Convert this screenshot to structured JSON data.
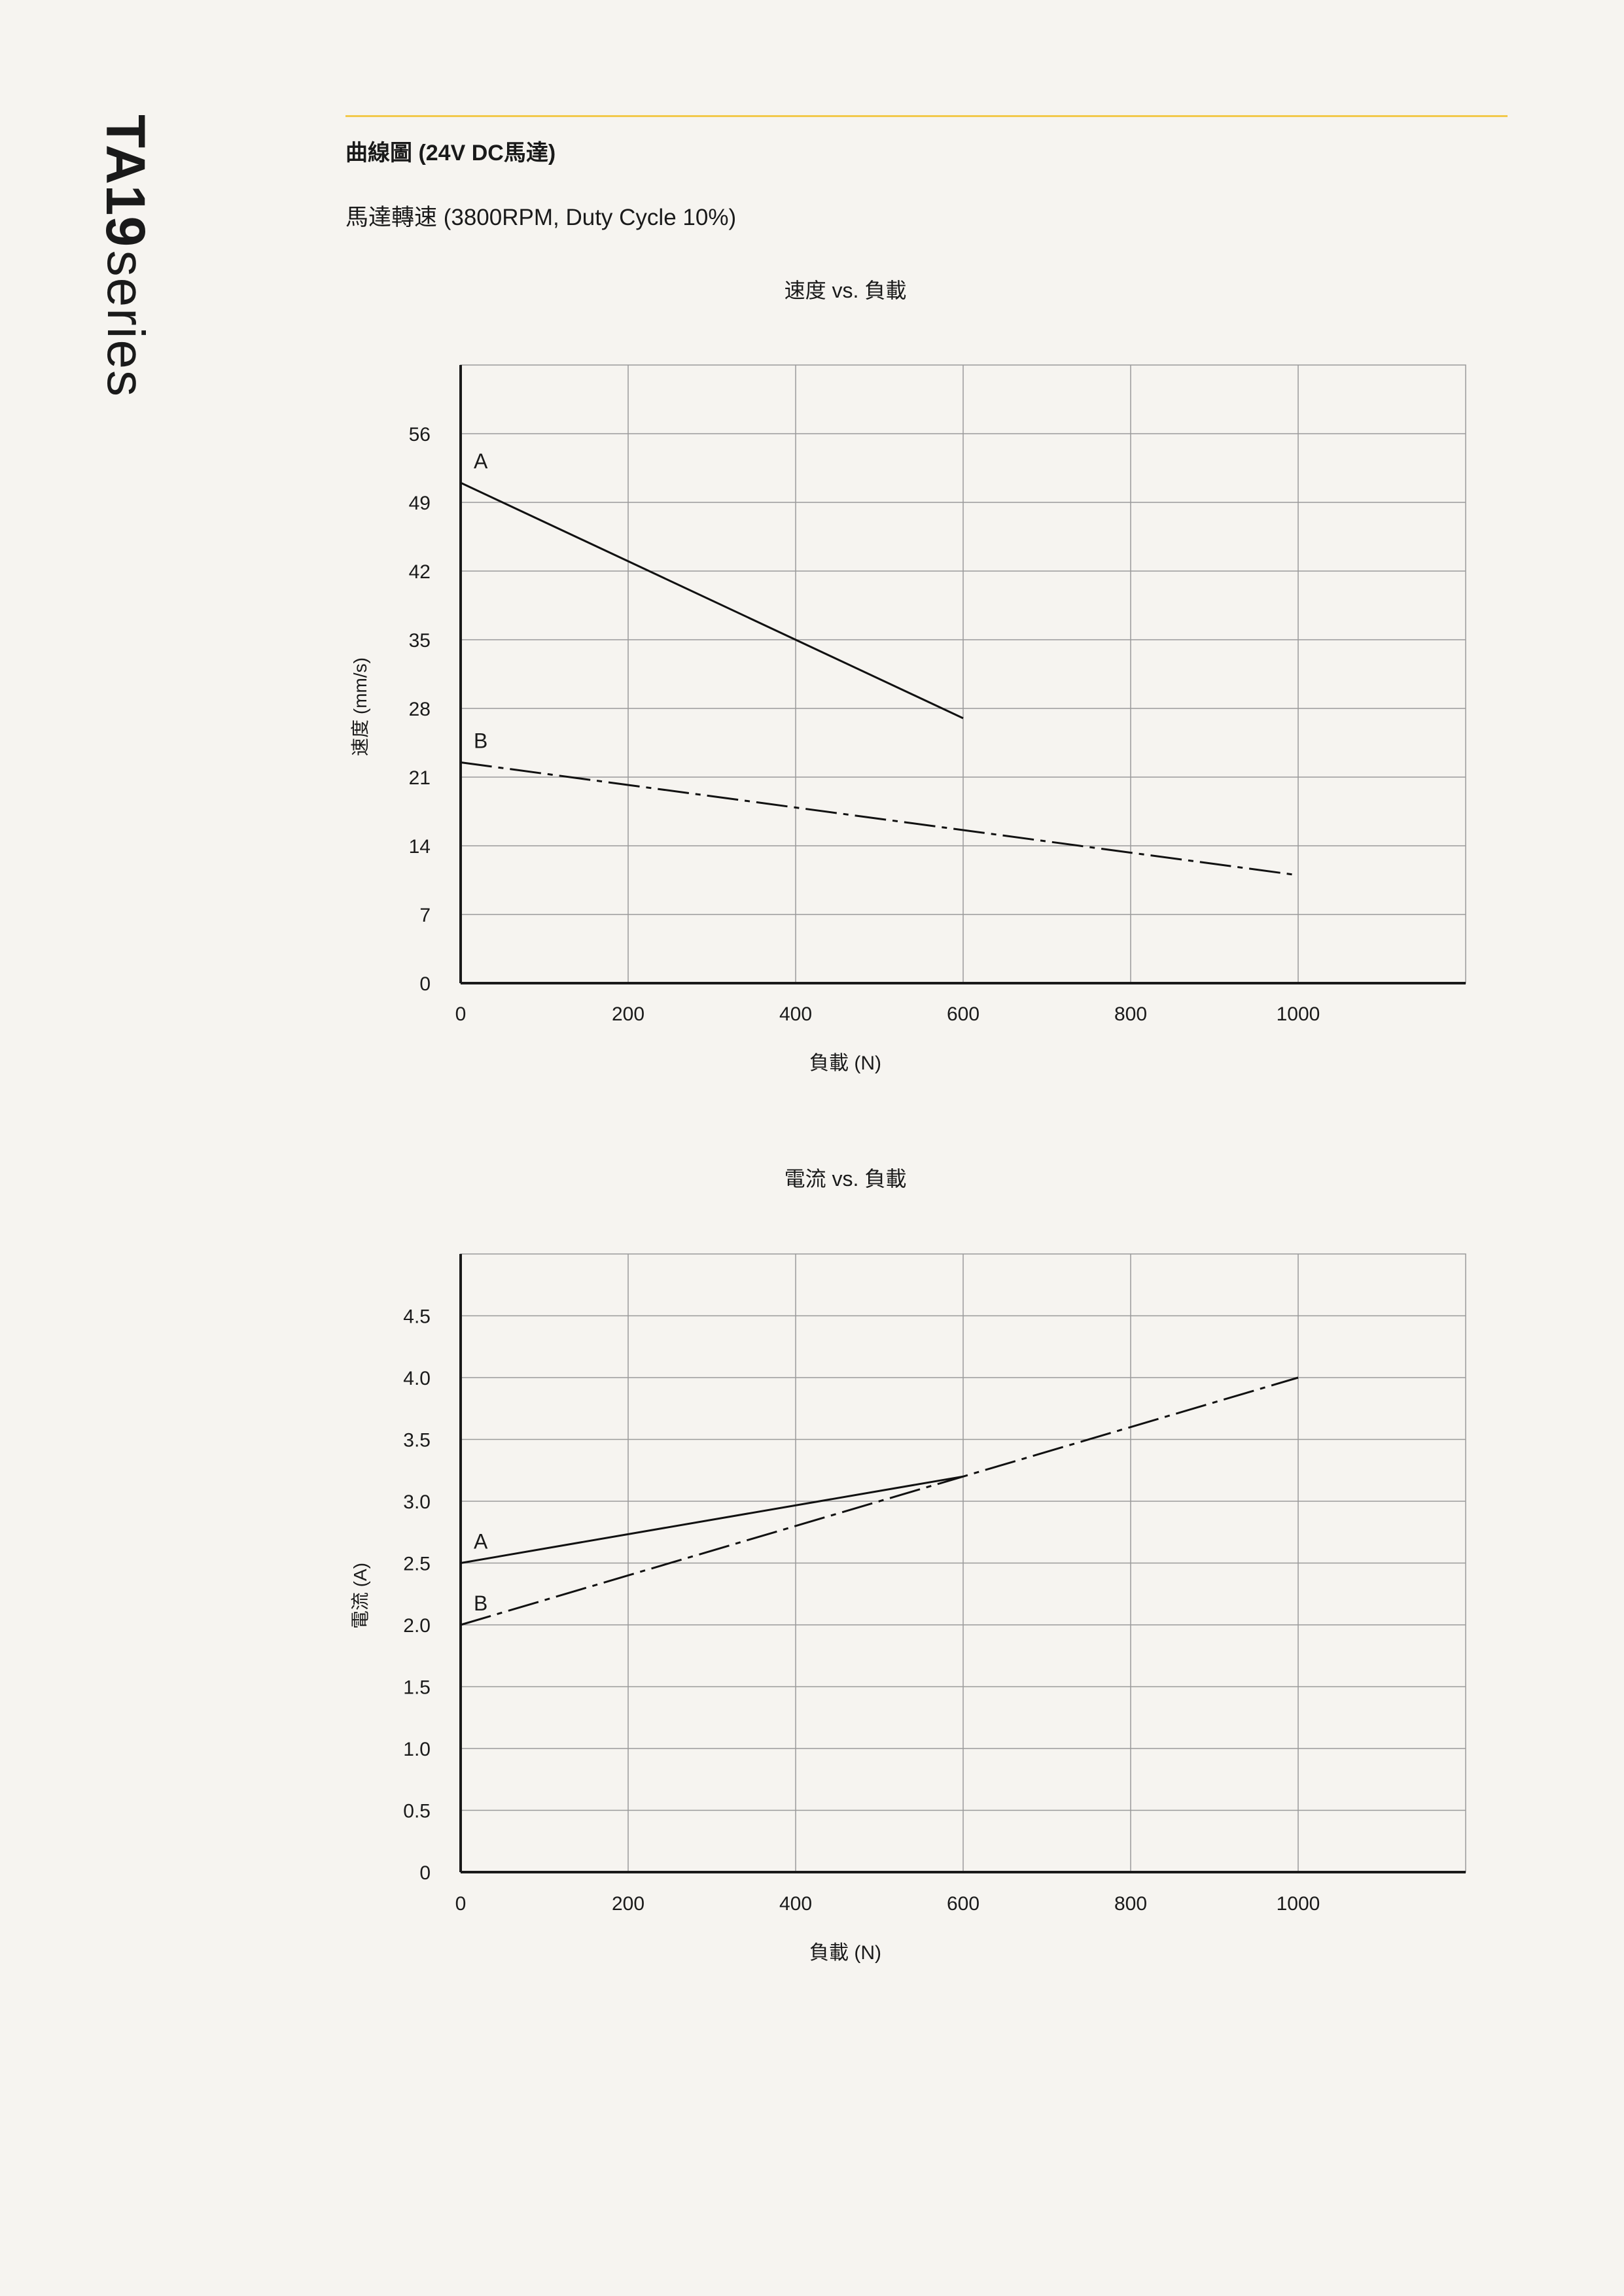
{
  "side": {
    "model": "TA19",
    "series": "series"
  },
  "page": {
    "heading": "曲線圖 (24V DC馬達)",
    "subheading": "馬達轉速 (3800RPM, Duty Cycle 10%)",
    "accent_color": "#f2c94c",
    "background": "#f6f4f0"
  },
  "chart_data": [
    {
      "type": "line",
      "title": "速度 vs. 負載",
      "xlabel": "負載 (N)",
      "ylabel": "速度 (mm/s)",
      "x_ticks": [
        0,
        200,
        400,
        600,
        800,
        1000
      ],
      "y_ticks": [
        0,
        7,
        14,
        21,
        28,
        35,
        42,
        49,
        56
      ],
      "xlim": [
        0,
        1200
      ],
      "ylim": [
        0,
        63
      ],
      "grid": true,
      "series": [
        {
          "name": "A",
          "x": [
            0,
            600
          ],
          "y": [
            51,
            27
          ],
          "style": "solid"
        },
        {
          "name": "B",
          "x": [
            0,
            1000
          ],
          "y": [
            22.5,
            11
          ],
          "style": "dashdot"
        }
      ]
    },
    {
      "type": "line",
      "title": "電流 vs. 負載",
      "xlabel": "負載 (N)",
      "ylabel": "電流 (A)",
      "x_ticks": [
        0,
        200,
        400,
        600,
        800,
        1000
      ],
      "y_ticks": [
        "0",
        "0.5",
        "1.0",
        "1.5",
        "2.0",
        "2.5",
        "3.0",
        "3.5",
        "4.0",
        "4.5"
      ],
      "xlim": [
        0,
        1200
      ],
      "ylim": [
        0,
        5
      ],
      "grid": true,
      "series": [
        {
          "name": "A",
          "x": [
            0,
            600
          ],
          "y": [
            2.5,
            3.2
          ],
          "style": "solid"
        },
        {
          "name": "B",
          "x": [
            0,
            1000
          ],
          "y": [
            2.0,
            4.0
          ],
          "style": "dashdot"
        }
      ]
    }
  ]
}
